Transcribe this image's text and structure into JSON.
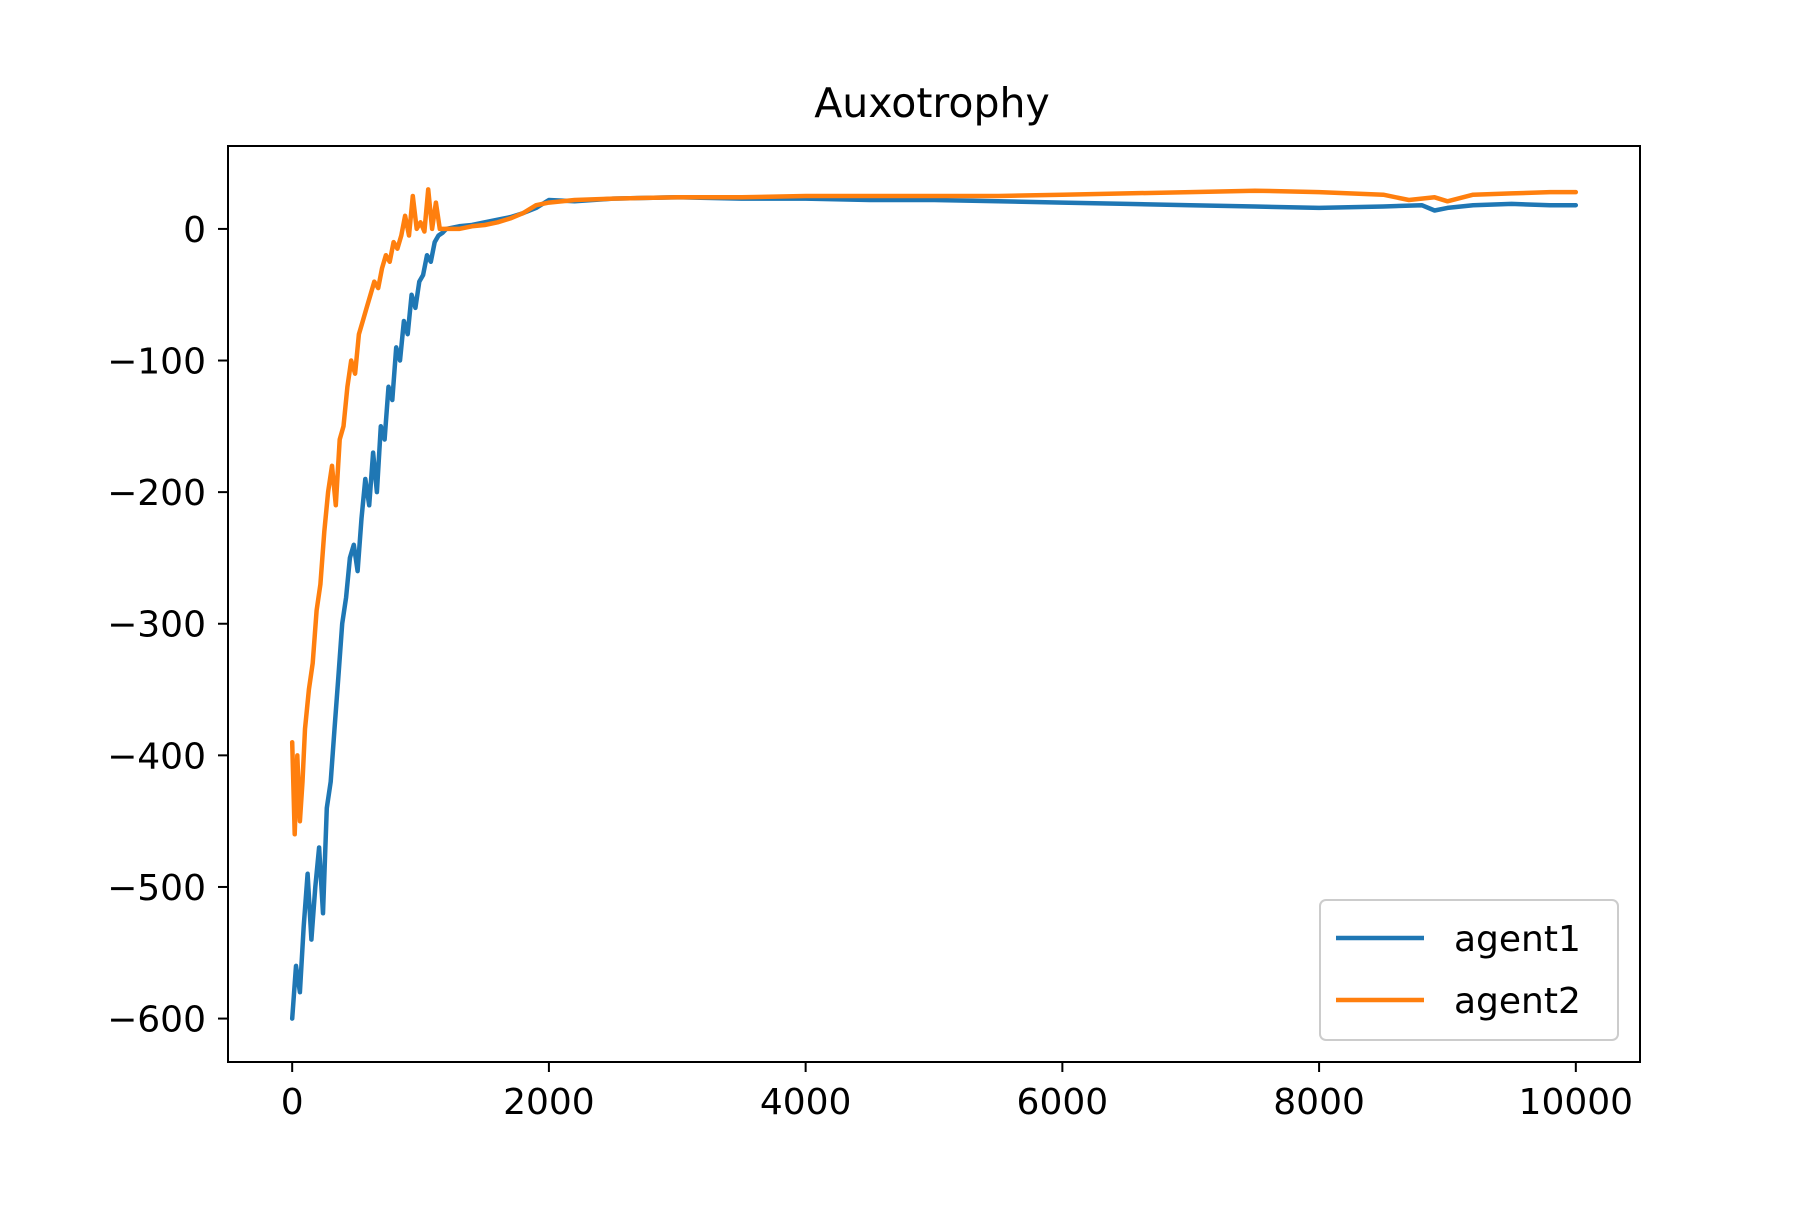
{
  "chart_data": {
    "type": "line",
    "title": "Auxotrophy",
    "xlabel": "",
    "ylabel": "",
    "xlim": [
      -500,
      10500
    ],
    "ylim": [
      -633,
      63
    ],
    "x_ticks": [
      0,
      2000,
      4000,
      6000,
      8000,
      10000
    ],
    "x_tick_labels": [
      "0",
      "2000",
      "4000",
      "6000",
      "8000",
      "10000"
    ],
    "y_ticks": [
      0,
      -100,
      -200,
      -300,
      -400,
      -500,
      -600
    ],
    "y_tick_labels": [
      "0",
      "−100",
      "−200",
      "−300",
      "−400",
      "−500",
      "−600"
    ],
    "grid": false,
    "legend_position": "lower-right",
    "series": [
      {
        "name": "agent1",
        "color": "#1f77b4",
        "x": [
          0,
          30,
          60,
          90,
          120,
          150,
          180,
          210,
          240,
          270,
          300,
          330,
          360,
          390,
          420,
          450,
          480,
          510,
          540,
          570,
          600,
          630,
          660,
          690,
          720,
          750,
          780,
          810,
          840,
          870,
          900,
          930,
          960,
          990,
          1020,
          1050,
          1080,
          1110,
          1140,
          1170,
          1200,
          1300,
          1400,
          1500,
          1600,
          1700,
          1800,
          1900,
          2000,
          2200,
          2500,
          3000,
          3500,
          4000,
          4500,
          5000,
          5500,
          6000,
          6500,
          7000,
          7500,
          8000,
          8500,
          8800,
          8900,
          9000,
          9200,
          9500,
          9800,
          10000
        ],
        "y": [
          -600,
          -560,
          -580,
          -530,
          -490,
          -540,
          -500,
          -470,
          -520,
          -440,
          -420,
          -380,
          -340,
          -300,
          -280,
          -250,
          -240,
          -260,
          -220,
          -190,
          -210,
          -170,
          -200,
          -150,
          -160,
          -120,
          -130,
          -90,
          -100,
          -70,
          -80,
          -50,
          -60,
          -40,
          -35,
          -20,
          -25,
          -10,
          -5,
          -3,
          0,
          2,
          3,
          5,
          7,
          9,
          12,
          16,
          22,
          21,
          23,
          24,
          23,
          23,
          22,
          22,
          21,
          20,
          19,
          18,
          17,
          16,
          17,
          18,
          14,
          16,
          18,
          19,
          18,
          18
        ]
      },
      {
        "name": "agent2",
        "color": "#ff7f0e",
        "x": [
          0,
          20,
          40,
          60,
          80,
          100,
          130,
          160,
          190,
          220,
          250,
          280,
          310,
          340,
          370,
          400,
          430,
          460,
          490,
          520,
          550,
          580,
          610,
          640,
          670,
          700,
          730,
          760,
          790,
          820,
          850,
          880,
          910,
          940,
          970,
          1000,
          1030,
          1060,
          1090,
          1120,
          1150,
          1200,
          1300,
          1400,
          1500,
          1600,
          1700,
          1800,
          1900,
          2000,
          2200,
          2500,
          3000,
          3500,
          4000,
          4500,
          5000,
          5500,
          6000,
          6500,
          7000,
          7500,
          8000,
          8500,
          8700,
          8900,
          9000,
          9200,
          9500,
          9800,
          10000
        ],
        "y": [
          -390,
          -460,
          -400,
          -450,
          -420,
          -380,
          -350,
          -330,
          -290,
          -270,
          -230,
          -200,
          -180,
          -210,
          -160,
          -150,
          -120,
          -100,
          -110,
          -80,
          -70,
          -60,
          -50,
          -40,
          -45,
          -30,
          -20,
          -25,
          -10,
          -15,
          -5,
          10,
          -5,
          25,
          0,
          5,
          -2,
          30,
          0,
          20,
          0,
          0,
          0,
          2,
          3,
          5,
          8,
          12,
          18,
          20,
          22,
          23,
          24,
          24,
          25,
          25,
          25,
          25,
          26,
          27,
          28,
          29,
          28,
          26,
          22,
          24,
          21,
          26,
          27,
          28,
          28
        ]
      }
    ]
  }
}
